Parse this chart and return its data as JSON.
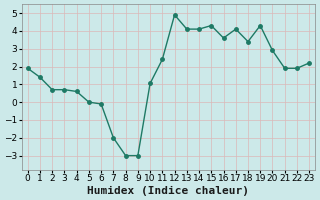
{
  "x": [
    0,
    1,
    2,
    3,
    4,
    5,
    6,
    7,
    8,
    9,
    10,
    11,
    12,
    13,
    14,
    15,
    16,
    17,
    18,
    19,
    20,
    21,
    22,
    23
  ],
  "y": [
    1.9,
    1.4,
    0.7,
    0.7,
    0.6,
    0.0,
    -0.1,
    -2.0,
    -3.0,
    -3.0,
    1.05,
    2.4,
    4.9,
    4.1,
    4.1,
    4.3,
    3.6,
    4.1,
    3.4,
    4.3,
    2.9,
    1.9,
    1.9,
    2.2
  ],
  "line_color": "#1e7a65",
  "marker_color": "#1e7a65",
  "bg_color": "#cce9e9",
  "grid_color": "#dbb8b8",
  "xlabel": "Humidex (Indice chaleur)",
  "ylim": [
    -3.8,
    5.5
  ],
  "xlim": [
    -0.5,
    23.5
  ],
  "yticks": [
    -3,
    -2,
    -1,
    0,
    1,
    2,
    3,
    4,
    5
  ],
  "xtick_labels": [
    "0",
    "1",
    "2",
    "3",
    "4",
    "5",
    "6",
    "7",
    "8",
    "9",
    "10",
    "11",
    "12",
    "13",
    "14",
    "15",
    "16",
    "17",
    "18",
    "19",
    "20",
    "21",
    "22",
    "23"
  ],
  "xlabel_fontsize": 8,
  "tick_fontsize": 6.5,
  "line_width": 1.0,
  "marker_size": 2.5
}
